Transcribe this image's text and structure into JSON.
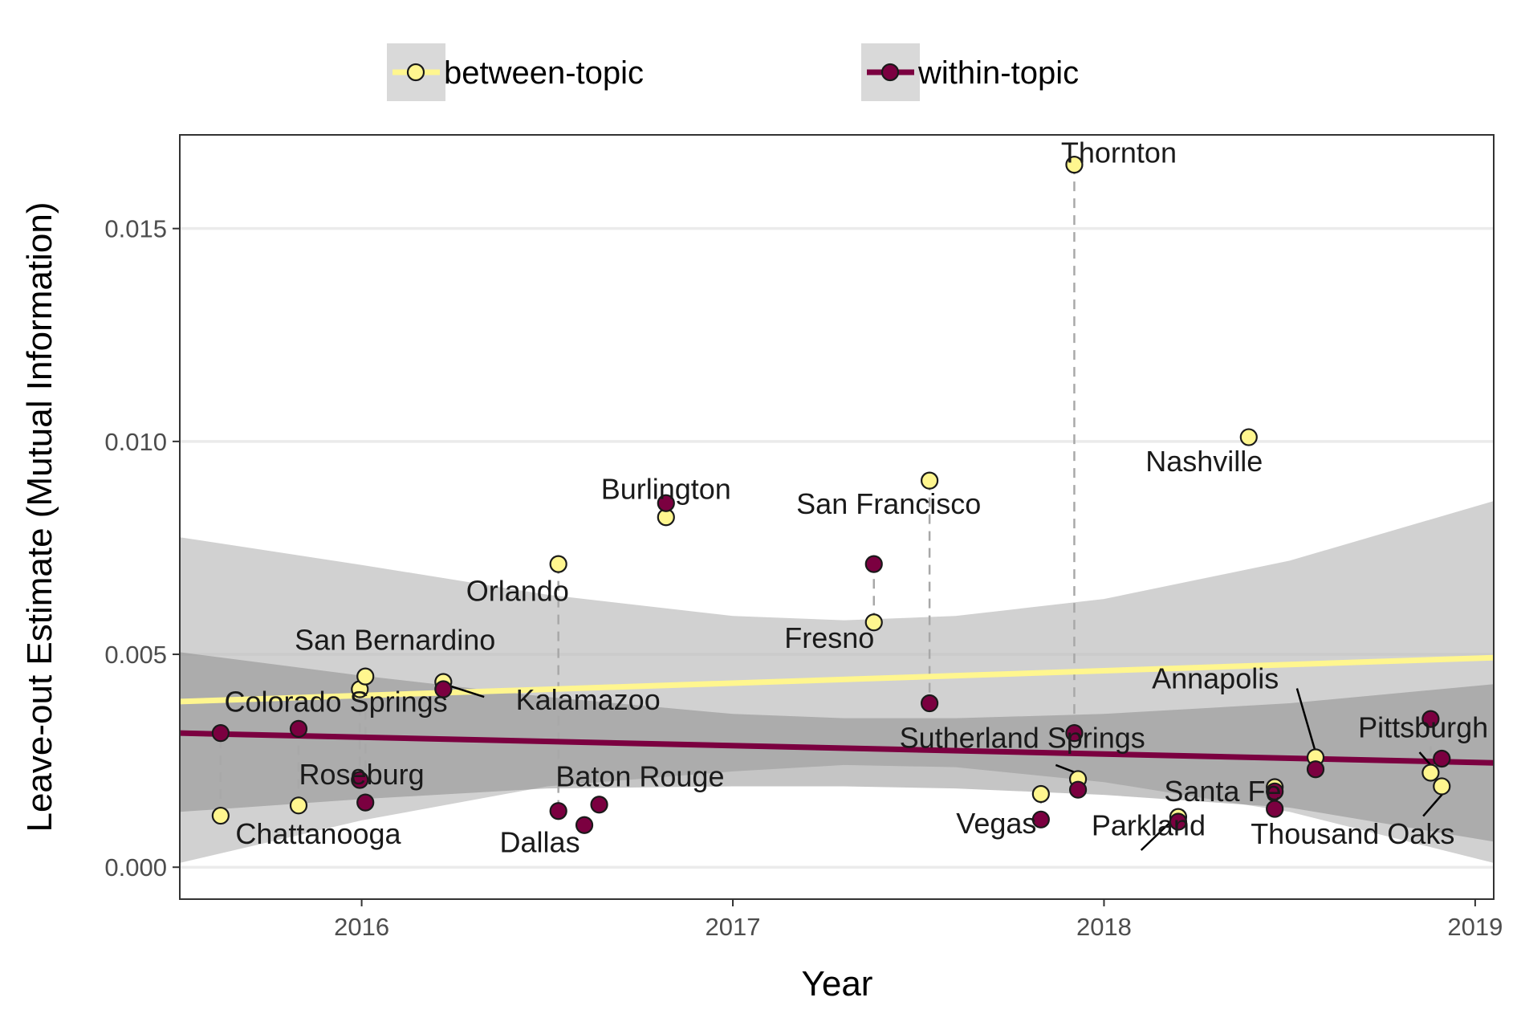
{
  "chart_data": {
    "type": "scatter",
    "xlabel": "Year",
    "ylabel": "Leave-out Estimate (Mutual Information)",
    "xlim": [
      2015.51,
      2019.05
    ],
    "ylim": [
      -0.00075,
      0.0172
    ],
    "x_ticks": [
      2016,
      2017,
      2018,
      2019
    ],
    "x_tick_labels": [
      "2016",
      "2017",
      "2018",
      "2019"
    ],
    "y_ticks": [
      0.0,
      0.005,
      0.01,
      0.015
    ],
    "y_tick_labels": [
      "0.000",
      "0.005",
      "0.010",
      "0.015"
    ],
    "grid": true,
    "legend": {
      "position": "top",
      "entries": [
        {
          "key": "between",
          "label": "between-topic"
        },
        {
          "key": "within",
          "label": "within-topic"
        }
      ]
    },
    "colors": {
      "between": "#fff68f",
      "within": "#7b0040",
      "band_between": "#bdbdbd",
      "band_within": "#7f7f7f",
      "gridline": "#ebebeb",
      "dashed": "#a8a8a8",
      "point_stroke": "#1a1a1a"
    },
    "trend_lines": {
      "between": {
        "x": [
          2015.51,
          2019.05
        ],
        "y": [
          0.00389,
          0.00492
        ]
      },
      "within": {
        "x": [
          2015.51,
          2019.05
        ],
        "y": [
          0.00315,
          0.00245
        ]
      }
    },
    "confidence_bands": {
      "between": {
        "x": [
          2015.51,
          2016.0,
          2016.5,
          2017.0,
          2017.3,
          2017.6,
          2018.0,
          2018.5,
          2019.05
        ],
        "upper": [
          0.00775,
          0.0071,
          0.0064,
          0.0059,
          0.0058,
          0.0059,
          0.0063,
          0.0072,
          0.0086
        ],
        "lower": [
          0.0001,
          0.0011,
          0.0019,
          0.00225,
          0.0024,
          0.00235,
          0.002,
          0.0013,
          0.0001
        ]
      },
      "within": {
        "x": [
          2015.51,
          2016.0,
          2016.5,
          2017.0,
          2017.3,
          2017.6,
          2018.0,
          2018.5,
          2019.05
        ],
        "upper": [
          0.00505,
          0.0045,
          0.004,
          0.0036,
          0.0035,
          0.0035,
          0.0036,
          0.00385,
          0.0043
        ],
        "lower": [
          0.0013,
          0.0016,
          0.00185,
          0.0019,
          0.0019,
          0.00185,
          0.0017,
          0.0014,
          0.0006
        ]
      }
    },
    "events": [
      {
        "label": "Chattanooga",
        "x": 2015.62,
        "between": 0.00121,
        "within": 0.00315
      },
      {
        "label": "Colorado Springs",
        "x": 2015.83,
        "between": 0.00145,
        "within": 0.00325
      },
      {
        "label": "Roseburg",
        "x": 2015.995,
        "between": 0.00418,
        "within": 0.00205
      },
      {
        "label": "San Bernardino",
        "x": 2016.01,
        "between": 0.00448,
        "within": 0.00152
      },
      {
        "label": "Kalamazoo",
        "x": 2016.22,
        "between": 0.00435,
        "within": 0.00418
      },
      {
        "label": "Orlando",
        "x": 2016.53,
        "between": 0.00712,
        "within": 0.00132
      },
      {
        "label": "Dallas",
        "x": 2016.6,
        "between": null,
        "within": 0.00099
      },
      {
        "label": "Baton Rouge",
        "x": 2016.64,
        "between": null,
        "within": 0.00147
      },
      {
        "label": "Burlington",
        "x": 2016.82,
        "between": 0.00822,
        "within": 0.00855
      },
      {
        "label": "Fresno",
        "x": 2017.38,
        "between": 0.00575,
        "within": 0.00712
      },
      {
        "label": "San Francisco",
        "x": 2017.53,
        "between": 0.00908,
        "within": 0.00385
      },
      {
        "label": "Vegas",
        "x": 2017.83,
        "between": 0.00172,
        "within": 0.00112
      },
      {
        "label": "Thornton",
        "x": 2017.92,
        "between": 0.0165,
        "within": 0.00315
      },
      {
        "label": "Sutherland Springs",
        "x": 2017.93,
        "between": 0.00207,
        "within": 0.00182
      },
      {
        "label": "Parkland",
        "x": 2018.2,
        "between": 0.00118,
        "within": 0.00107
      },
      {
        "label": "Santa Fe",
        "x": 2018.46,
        "between": null,
        "within": 0.00178
      },
      {
        "label": "Nashville",
        "x": 2018.39,
        "between": 0.0101,
        "within": null
      },
      {
        "label": "Santa Fe (2)",
        "x": 2018.46,
        "between": 0.00188,
        "within": 0.00137
      },
      {
        "label": "Annapolis",
        "x": 2018.57,
        "between": 0.00258,
        "within": 0.0023
      },
      {
        "label": "Pittsburgh",
        "x": 2018.88,
        "between": 0.00222,
        "within": 0.00348
      },
      {
        "label": "Thousand Oaks",
        "x": 2018.91,
        "between": 0.0019,
        "within": 0.00255
      }
    ],
    "labels": [
      {
        "text": "Chattanooga",
        "x": 2015.66,
        "y": 0.00055,
        "anchor": "start"
      },
      {
        "text": "Colorado Springs",
        "x": 2015.63,
        "y": 0.00365,
        "anchor": "start"
      },
      {
        "text": "Roseburg",
        "x": 2016.0,
        "y": 0.00195,
        "anchor": "middle"
      },
      {
        "text": "San Bernardino",
        "x": 2016.09,
        "y": 0.0051,
        "anchor": "middle"
      },
      {
        "text": "Kalamazoo",
        "x": 2016.61,
        "y": 0.0037,
        "anchor": "middle"
      },
      {
        "text": "Orlando",
        "x": 2016.42,
        "y": 0.00625,
        "anchor": "middle"
      },
      {
        "text": "Dallas",
        "x": 2016.48,
        "y": 0.00035,
        "anchor": "middle"
      },
      {
        "text": "Baton Rouge",
        "x": 2016.75,
        "y": 0.0019,
        "anchor": "middle"
      },
      {
        "text": "Burlington",
        "x": 2016.82,
        "y": 0.00865,
        "anchor": "middle"
      },
      {
        "text": "San Francisco",
        "x": 2017.42,
        "y": 0.0083,
        "anchor": "middle"
      },
      {
        "text": "Fresno",
        "x": 2017.26,
        "y": 0.00515,
        "anchor": "middle"
      },
      {
        "text": "Thornton",
        "x": 2018.04,
        "y": 0.01655,
        "anchor": "middle"
      },
      {
        "text": "Nashville",
        "x": 2018.27,
        "y": 0.0093,
        "anchor": "middle"
      },
      {
        "text": "Annapolis",
        "x": 2018.3,
        "y": 0.0042,
        "anchor": "middle"
      },
      {
        "text": "Sutherland Springs",
        "x": 2017.78,
        "y": 0.0028,
        "anchor": "middle"
      },
      {
        "text": "Pittsburgh",
        "x": 2018.86,
        "y": 0.00305,
        "anchor": "middle"
      },
      {
        "text": "Vegas",
        "x": 2017.71,
        "y": 0.0008,
        "anchor": "middle"
      },
      {
        "text": "Santa Fe",
        "x": 2018.32,
        "y": 0.00155,
        "anchor": "middle"
      },
      {
        "text": "Parkland",
        "x": 2018.12,
        "y": 0.00075,
        "anchor": "middle"
      },
      {
        "text": "Thousand Oaks",
        "x": 2018.67,
        "y": 0.00055,
        "anchor": "middle"
      }
    ]
  }
}
